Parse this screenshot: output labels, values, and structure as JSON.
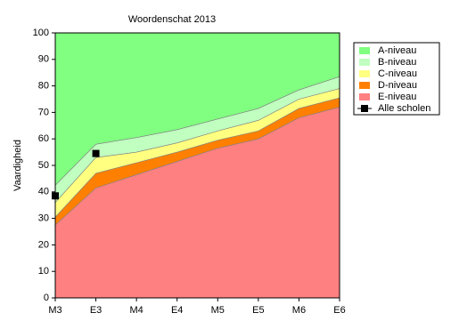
{
  "chart_data": {
    "type": "stacked_area",
    "title": "Woordenschat 2013",
    "y_label": "Vaardigheid",
    "categories": [
      "M3",
      "E3",
      "M4",
      "E4",
      "M5",
      "E5",
      "M6",
      "E6"
    ],
    "ylim": [
      0,
      100
    ],
    "yticks": [
      0,
      10,
      20,
      30,
      40,
      50,
      60,
      70,
      80,
      90,
      100
    ],
    "series": [
      {
        "name": "A-niveau",
        "color": "#80ff80",
        "values": [
          57.5,
          42,
          39.5,
          36.5,
          32.5,
          28.5,
          21.5,
          16.5
        ]
      },
      {
        "name": "B-niveau",
        "color": "#c0ffc0",
        "values": [
          6.5,
          5,
          5.5,
          5,
          4.5,
          4.5,
          3.5,
          4.5
        ]
      },
      {
        "name": "C-niveau",
        "color": "#ffff80",
        "values": [
          5.5,
          6,
          4,
          3.5,
          3.5,
          4,
          3.5,
          3.5
        ]
      },
      {
        "name": "D-niveau",
        "color": "#ff8000",
        "values": [
          3,
          5.5,
          4.5,
          3.5,
          3,
          3,
          3.5,
          3.5
        ]
      },
      {
        "name": "E-niveau",
        "color": "#ff8080",
        "values": [
          27.5,
          41.5,
          46.5,
          51.5,
          56.5,
          60,
          68,
          72
        ]
      },
      {
        "name": "Alle scholen",
        "color": "#000000",
        "type": "line",
        "marker": "square",
        "values": [
          38.5,
          54.5,
          null,
          null,
          null,
          null,
          null,
          null
        ]
      }
    ]
  }
}
